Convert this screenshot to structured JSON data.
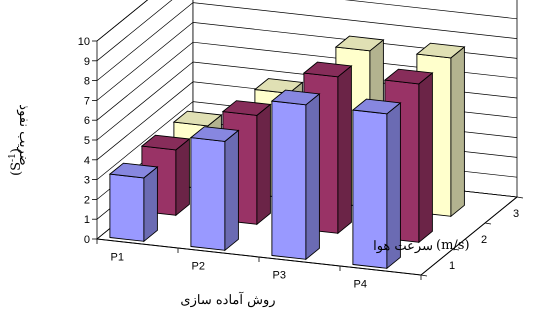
{
  "chart_data": {
    "type": "bar",
    "subtype": "3d-column",
    "categories": [
      "P1",
      "P2",
      "P3",
      "P4"
    ],
    "series": [
      {
        "name": "1",
        "values": [
          3.2,
          5.5,
          7.8,
          7.8
        ],
        "color": "#9999ff"
      },
      {
        "name": "2",
        "values": [
          3.3,
          5.5,
          7.9,
          8.0
        ],
        "color": "#993366"
      },
      {
        "name": "3",
        "values": [
          3.2,
          5.3,
          7.9,
          8.0
        ],
        "color": "#ffffcc"
      }
    ],
    "depth_ticks": [
      "1",
      "2",
      "3"
    ],
    "ylim": [
      0,
      10
    ],
    "yticks": [
      0,
      1,
      2,
      3,
      4,
      5,
      6,
      7,
      8,
      9,
      10
    ],
    "grid": true,
    "legend": "none",
    "ylabel_main": "ضریب نفوذ",
    "ylabel_unit": "(S",
    "ylabel_unit_sup": "-1",
    "ylabel_unit_close": ")",
    "xlabel": "روش آماده سازی",
    "zlabel": "سرعت هوا",
    "zlabel_unit": "(m/s)"
  }
}
